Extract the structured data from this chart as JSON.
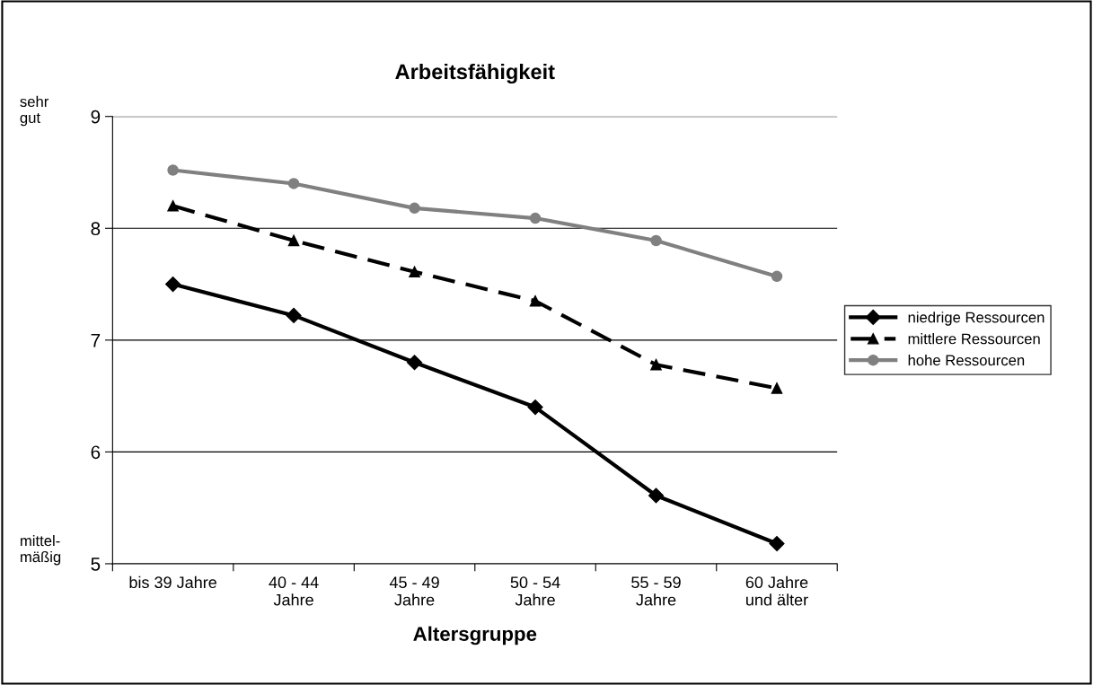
{
  "chart_data": {
    "type": "line",
    "title": "Arbeitsfähigkeit",
    "xlabel": "Altersgruppe",
    "categories": [
      "bis 39 Jahre",
      "40 - 44\nJahre",
      "45 - 49\nJahre",
      "50 - 54\nJahre",
      "55 - 59\nJahre",
      "60 Jahre\nund älter"
    ],
    "series": [
      {
        "name": "niedrige Ressourcen",
        "color": "#000000",
        "marker": "diamond",
        "line_style": "solid",
        "values": [
          7.5,
          7.22,
          6.8,
          6.4,
          5.61,
          5.18
        ]
      },
      {
        "name": "mittlere Ressourcen",
        "color": "#000000",
        "marker": "triangle",
        "line_style": "dashed",
        "values": [
          8.2,
          7.89,
          7.61,
          7.35,
          6.78,
          6.57
        ]
      },
      {
        "name": "hohe Ressourcen",
        "color": "#808080",
        "marker": "circle",
        "line_style": "solid",
        "values": [
          8.52,
          8.4,
          8.18,
          8.09,
          7.89,
          7.57
        ]
      }
    ],
    "ylim": [
      5,
      9
    ],
    "yticks": [
      5,
      6,
      7,
      8,
      9
    ],
    "grid": "y",
    "legend": "right",
    "annotations": [
      "sehr\ngut",
      "mittel-\nmäßig"
    ]
  }
}
